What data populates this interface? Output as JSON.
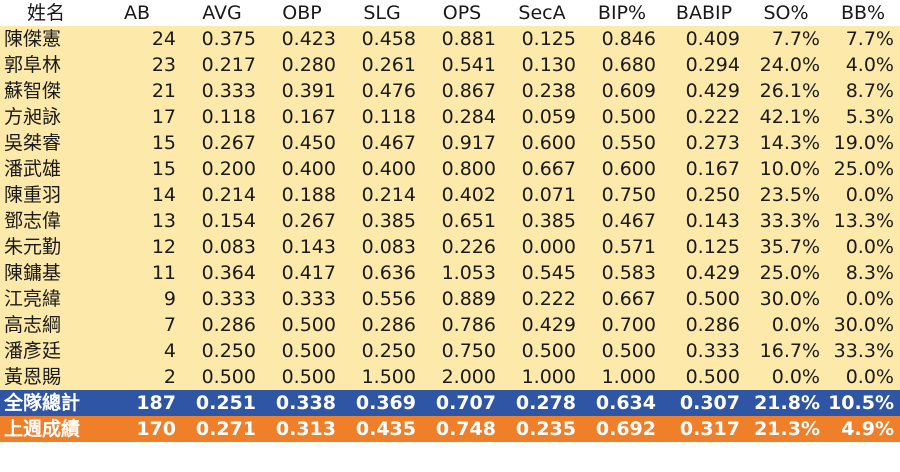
{
  "header": {
    "name": "姓名",
    "ab": "AB",
    "avg": "AVG",
    "obp": "OBP",
    "slg": "SLG",
    "ops": "OPS",
    "seca": "SecA",
    "bip": "BIP%",
    "babip": "BABIP",
    "so": "SO%",
    "bb": "BB%"
  },
  "players": [
    {
      "name": "陳傑憲",
      "ab": "24",
      "avg": "0.375",
      "obp": "0.423",
      "slg": "0.458",
      "ops": "0.881",
      "seca": "0.125",
      "bip": "0.846",
      "babip": "0.409",
      "so": "7.7%",
      "bb": "7.7%"
    },
    {
      "name": "郭阜林",
      "ab": "23",
      "avg": "0.217",
      "obp": "0.280",
      "slg": "0.261",
      "ops": "0.541",
      "seca": "0.130",
      "bip": "0.680",
      "babip": "0.294",
      "so": "24.0%",
      "bb": "4.0%"
    },
    {
      "name": "蘇智傑",
      "ab": "21",
      "avg": "0.333",
      "obp": "0.391",
      "slg": "0.476",
      "ops": "0.867",
      "seca": "0.238",
      "bip": "0.609",
      "babip": "0.429",
      "so": "26.1%",
      "bb": "8.7%"
    },
    {
      "name": "方昶詠",
      "ab": "17",
      "avg": "0.118",
      "obp": "0.167",
      "slg": "0.118",
      "ops": "0.284",
      "seca": "0.059",
      "bip": "0.500",
      "babip": "0.222",
      "so": "42.1%",
      "bb": "5.3%"
    },
    {
      "name": "吳桀睿",
      "ab": "15",
      "avg": "0.267",
      "obp": "0.450",
      "slg": "0.467",
      "ops": "0.917",
      "seca": "0.600",
      "bip": "0.550",
      "babip": "0.273",
      "so": "14.3%",
      "bb": "19.0%"
    },
    {
      "name": "潘武雄",
      "ab": "15",
      "avg": "0.200",
      "obp": "0.400",
      "slg": "0.400",
      "ops": "0.800",
      "seca": "0.667",
      "bip": "0.600",
      "babip": "0.167",
      "so": "10.0%",
      "bb": "25.0%"
    },
    {
      "name": "陳重羽",
      "ab": "14",
      "avg": "0.214",
      "obp": "0.188",
      "slg": "0.214",
      "ops": "0.402",
      "seca": "0.071",
      "bip": "0.750",
      "babip": "0.250",
      "so": "23.5%",
      "bb": "0.0%"
    },
    {
      "name": "鄧志偉",
      "ab": "13",
      "avg": "0.154",
      "obp": "0.267",
      "slg": "0.385",
      "ops": "0.651",
      "seca": "0.385",
      "bip": "0.467",
      "babip": "0.143",
      "so": "33.3%",
      "bb": "13.3%"
    },
    {
      "name": "朱元勤",
      "ab": "12",
      "avg": "0.083",
      "obp": "0.143",
      "slg": "0.083",
      "ops": "0.226",
      "seca": "0.000",
      "bip": "0.571",
      "babip": "0.125",
      "so": "35.7%",
      "bb": "0.0%"
    },
    {
      "name": "陳鏞基",
      "ab": "11",
      "avg": "0.364",
      "obp": "0.417",
      "slg": "0.636",
      "ops": "1.053",
      "seca": "0.545",
      "bip": "0.583",
      "babip": "0.429",
      "so": "25.0%",
      "bb": "8.3%"
    },
    {
      "name": "江亮緯",
      "ab": "9",
      "avg": "0.333",
      "obp": "0.333",
      "slg": "0.556",
      "ops": "0.889",
      "seca": "0.222",
      "bip": "0.667",
      "babip": "0.500",
      "so": "30.0%",
      "bb": "0.0%"
    },
    {
      "name": "高志綱",
      "ab": "7",
      "avg": "0.286",
      "obp": "0.500",
      "slg": "0.286",
      "ops": "0.786",
      "seca": "0.429",
      "bip": "0.700",
      "babip": "0.286",
      "so": "0.0%",
      "bb": "30.0%"
    },
    {
      "name": "潘彥廷",
      "ab": "4",
      "avg": "0.250",
      "obp": "0.500",
      "slg": "0.250",
      "ops": "0.750",
      "seca": "0.500",
      "bip": "0.500",
      "babip": "0.333",
      "so": "16.7%",
      "bb": "33.3%"
    },
    {
      "name": "黃恩賜",
      "ab": "2",
      "avg": "0.500",
      "obp": "0.500",
      "slg": "1.500",
      "ops": "2.000",
      "seca": "1.000",
      "bip": "1.000",
      "babip": "0.500",
      "so": "0.0%",
      "bb": "0.0%"
    }
  ],
  "team_total": {
    "name": "全隊總計",
    "ab": "187",
    "avg": "0.251",
    "obp": "0.338",
    "slg": "0.369",
    "ops": "0.707",
    "seca": "0.278",
    "bip": "0.634",
    "babip": "0.307",
    "so": "21.8%",
    "bb": "10.5%"
  },
  "last_week": {
    "name": "上週成績",
    "ab": "170",
    "avg": "0.271",
    "obp": "0.313",
    "slg": "0.435",
    "ops": "0.748",
    "seca": "0.235",
    "bip": "0.692",
    "babip": "0.317",
    "so": "21.3%",
    "bb": "4.9%"
  },
  "colors": {
    "player_row_bg": "#fde9a9",
    "team_total_bg": "#2f55a5",
    "last_week_bg": "#f07f2a",
    "summary_text": "#ffffff"
  }
}
